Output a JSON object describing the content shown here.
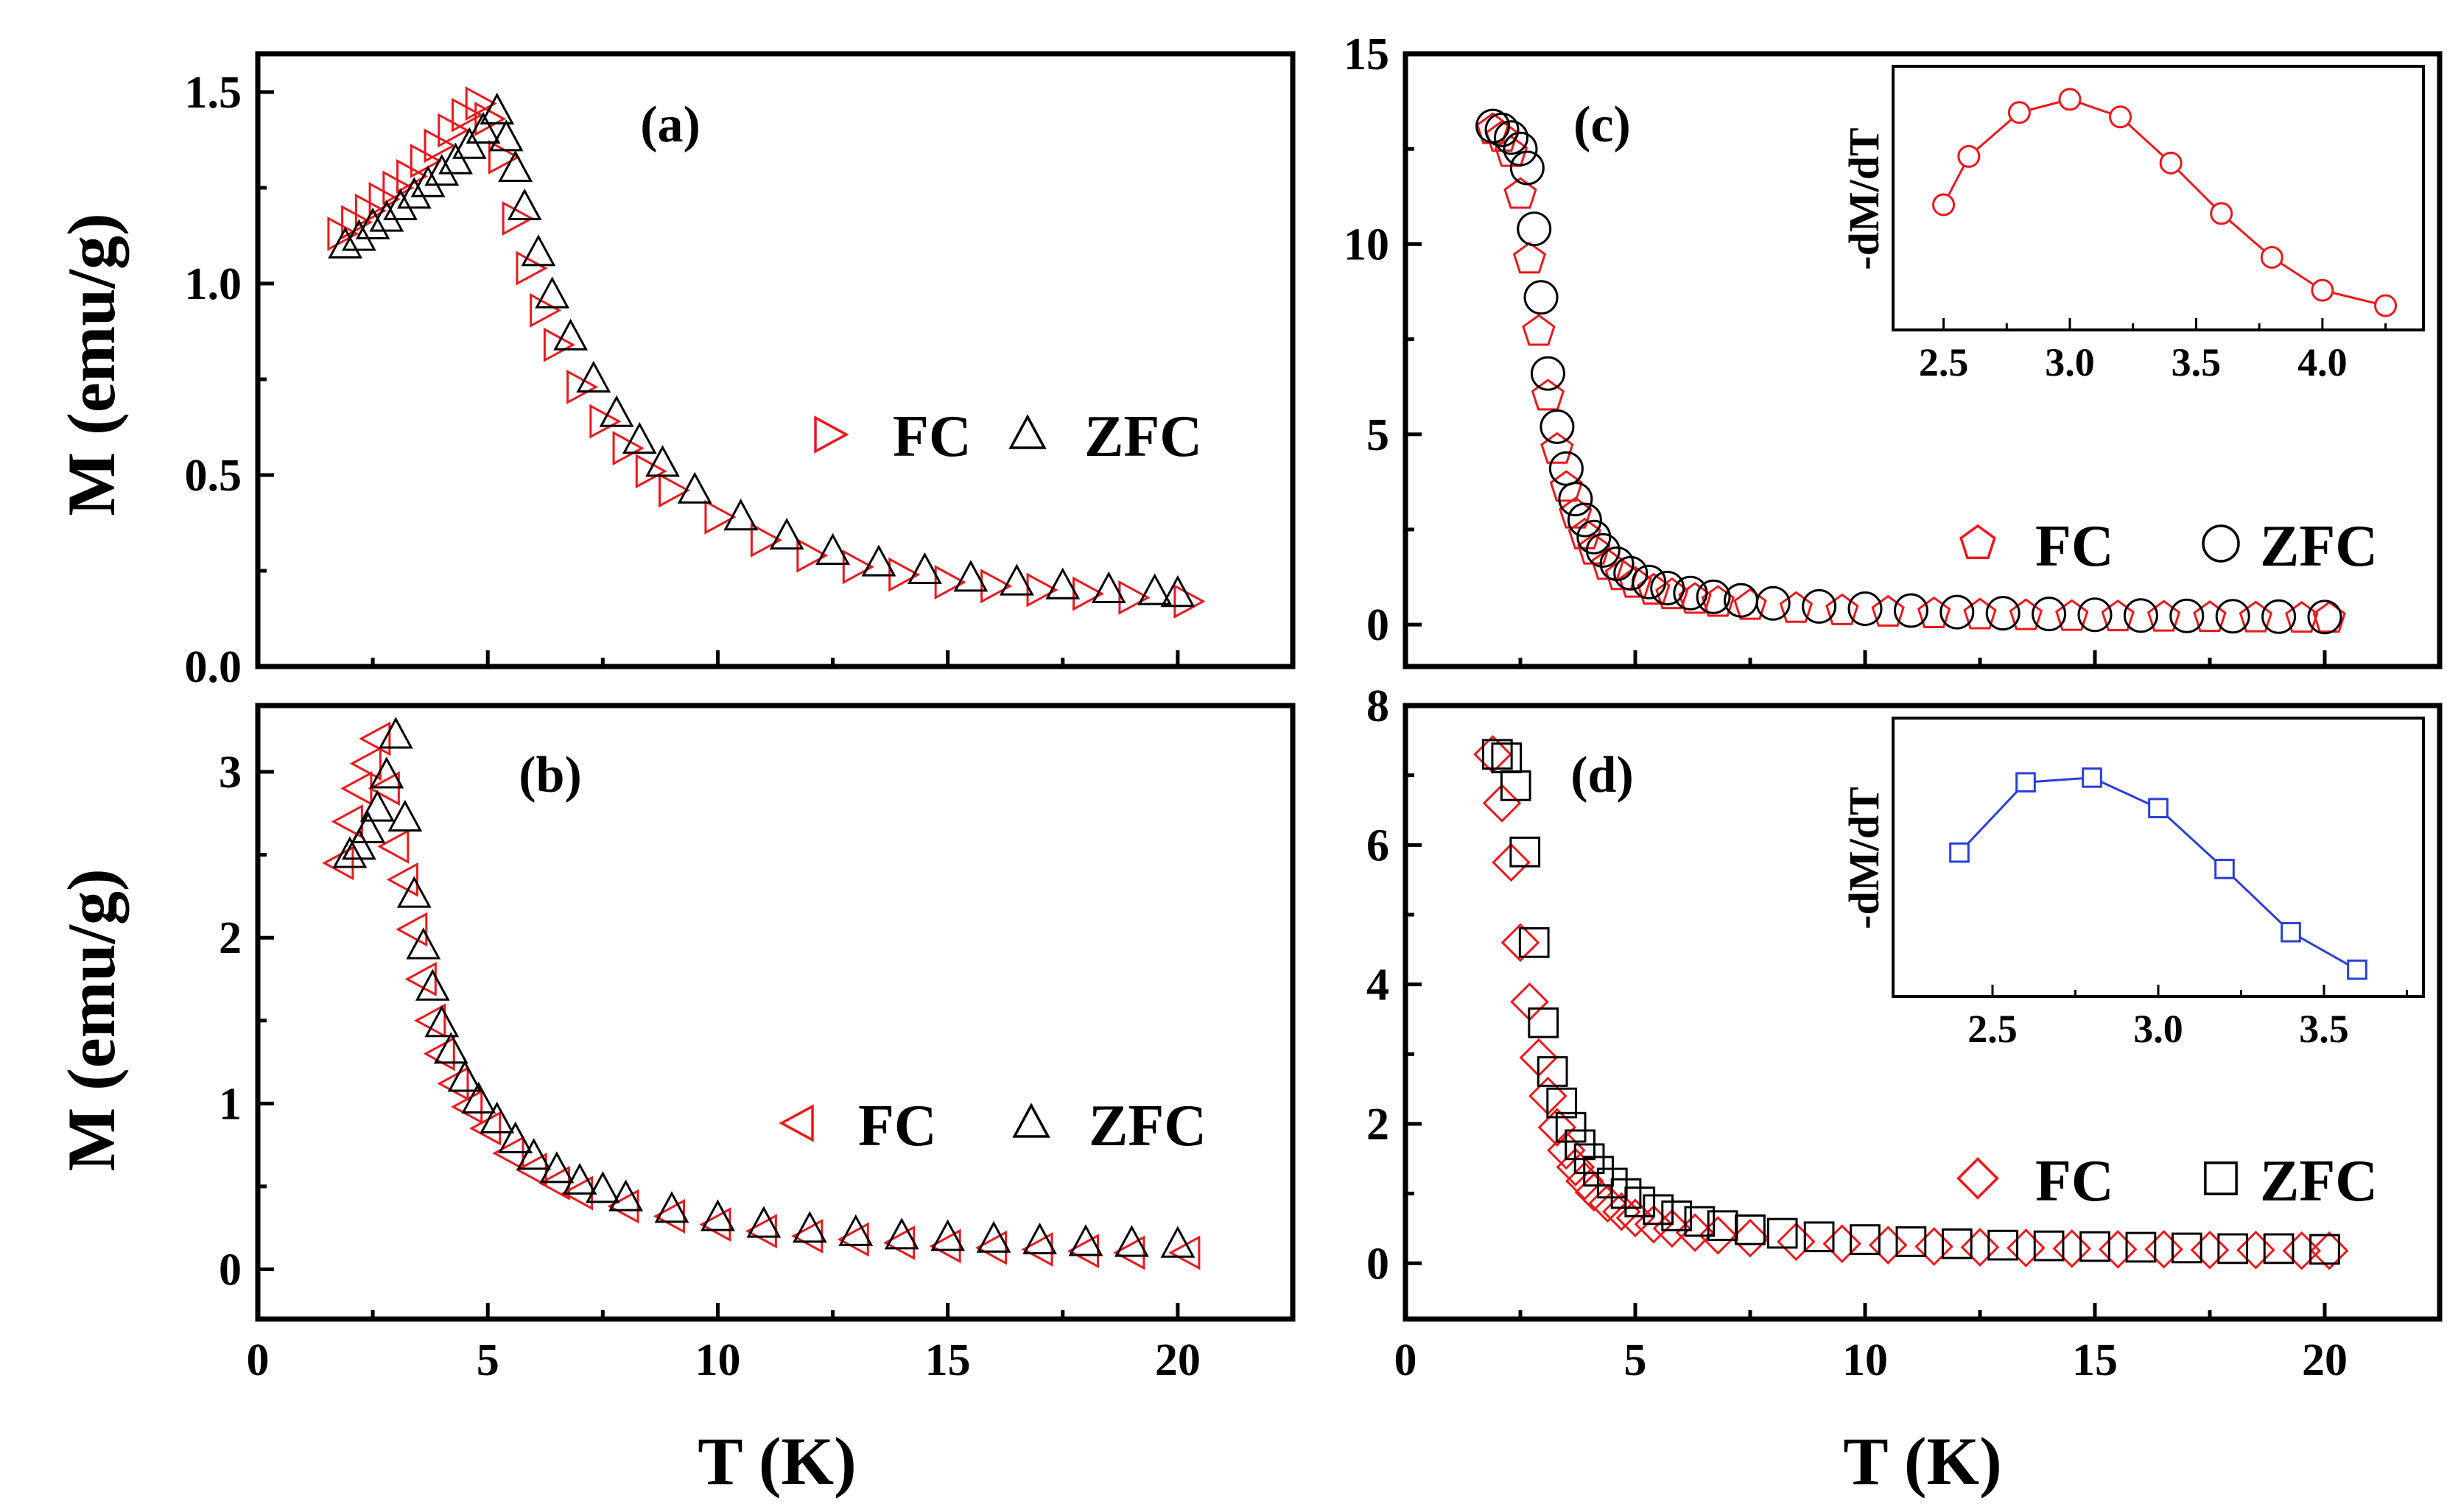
{
  "chart_data": [
    {
      "id": "a",
      "type": "scatter",
      "panel_label": "(a)",
      "xlabel": "",
      "ylabel": "M (emu/g)",
      "xlim": [
        0,
        22.5
      ],
      "ylim": [
        0,
        1.6
      ],
      "xticks": [
        0,
        5,
        10,
        15,
        20
      ],
      "xtick_labels": [
        "",
        "",
        "",
        "",
        ""
      ],
      "yticks": [
        0.0,
        0.5,
        1.0,
        1.5
      ],
      "ytick_labels": [
        "0.0",
        "0.5",
        "1.0",
        "1.5"
      ],
      "legend": {
        "position": "middle-right",
        "entries": [
          "FC",
          "ZFC"
        ]
      },
      "series": [
        {
          "name": "FC",
          "marker": "triangle-right",
          "color": "#e8191c",
          "x": [
            1.8,
            2.1,
            2.4,
            2.7,
            3.0,
            3.3,
            3.6,
            3.9,
            4.2,
            4.5,
            4.8,
            5.0,
            5.3,
            5.6,
            5.9,
            6.2,
            6.5,
            7.0,
            7.5,
            8.0,
            8.5,
            9.0,
            10.0,
            11.0,
            12.0,
            13.0,
            14.0,
            15.0,
            16.0,
            17.0,
            18.0,
            19.0,
            20.2
          ],
          "y": [
            1.13,
            1.16,
            1.19,
            1.22,
            1.25,
            1.28,
            1.32,
            1.36,
            1.4,
            1.44,
            1.47,
            1.43,
            1.33,
            1.17,
            1.04,
            0.93,
            0.84,
            0.73,
            0.64,
            0.57,
            0.51,
            0.46,
            0.39,
            0.33,
            0.29,
            0.26,
            0.24,
            0.22,
            0.21,
            0.2,
            0.19,
            0.18,
            0.17
          ]
        },
        {
          "name": "ZFC",
          "marker": "triangle-up",
          "color": "#000000",
          "x": [
            1.9,
            2.2,
            2.5,
            2.8,
            3.1,
            3.4,
            3.7,
            4.0,
            4.3,
            4.6,
            4.9,
            5.2,
            5.4,
            5.6,
            5.8,
            6.1,
            6.4,
            6.8,
            7.3,
            7.8,
            8.3,
            8.8,
            9.5,
            10.5,
            11.5,
            12.5,
            13.5,
            14.5,
            15.5,
            16.5,
            17.5,
            18.5,
            19.5,
            20.0
          ],
          "y": [
            1.1,
            1.12,
            1.15,
            1.17,
            1.2,
            1.23,
            1.26,
            1.29,
            1.32,
            1.36,
            1.4,
            1.45,
            1.38,
            1.3,
            1.2,
            1.08,
            0.97,
            0.86,
            0.75,
            0.66,
            0.59,
            0.53,
            0.46,
            0.39,
            0.34,
            0.3,
            0.27,
            0.25,
            0.23,
            0.22,
            0.21,
            0.2,
            0.195,
            0.19
          ]
        }
      ]
    },
    {
      "id": "b",
      "type": "scatter",
      "panel_label": "(b)",
      "xlabel": "T (K)",
      "ylabel": "M (emu/g)",
      "xlim": [
        0,
        22.5
      ],
      "ylim": [
        -0.3,
        3.4
      ],
      "xticks": [
        0,
        5,
        10,
        15,
        20
      ],
      "xtick_labels": [
        "0",
        "5",
        "10",
        "15",
        "20"
      ],
      "yticks": [
        0,
        1,
        2,
        3
      ],
      "ytick_labels": [
        "0",
        "1",
        "2",
        "3"
      ],
      "legend": {
        "position": "lower-right",
        "entries": [
          "FC",
          "ZFC"
        ]
      },
      "series": [
        {
          "name": "FC",
          "marker": "triangle-left",
          "color": "#e8191c",
          "x": [
            1.8,
            2.0,
            2.2,
            2.4,
            2.6,
            2.8,
            3.0,
            3.2,
            3.4,
            3.6,
            3.8,
            4.0,
            4.3,
            4.6,
            5.0,
            5.5,
            6.0,
            6.5,
            7.0,
            8.0,
            9.0,
            10.0,
            11.0,
            12.0,
            13.0,
            14.0,
            15.0,
            16.0,
            17.0,
            18.0,
            19.0,
            20.2
          ],
          "y": [
            2.45,
            2.7,
            2.9,
            3.05,
            3.2,
            2.9,
            2.55,
            2.35,
            2.05,
            1.75,
            1.5,
            1.3,
            1.12,
            0.98,
            0.85,
            0.7,
            0.6,
            0.52,
            0.46,
            0.38,
            0.32,
            0.27,
            0.23,
            0.2,
            0.18,
            0.16,
            0.14,
            0.13,
            0.12,
            0.11,
            0.1,
            0.1
          ]
        },
        {
          "name": "ZFC",
          "marker": "triangle-up",
          "color": "#000000",
          "x": [
            2.0,
            2.2,
            2.4,
            2.6,
            2.8,
            3.0,
            3.2,
            3.4,
            3.6,
            3.8,
            4.0,
            4.2,
            4.5,
            4.8,
            5.2,
            5.6,
            6.0,
            6.5,
            7.0,
            7.5,
            8.0,
            9.0,
            10.0,
            11.0,
            12.0,
            13.0,
            14.0,
            15.0,
            16.0,
            17.0,
            18.0,
            19.0,
            20.0
          ],
          "y": [
            2.5,
            2.55,
            2.65,
            2.78,
            2.98,
            3.22,
            2.72,
            2.26,
            1.95,
            1.7,
            1.48,
            1.32,
            1.15,
            1.02,
            0.9,
            0.78,
            0.68,
            0.6,
            0.53,
            0.48,
            0.43,
            0.36,
            0.31,
            0.27,
            0.24,
            0.22,
            0.2,
            0.19,
            0.18,
            0.17,
            0.16,
            0.155,
            0.15
          ]
        }
      ]
    },
    {
      "id": "c",
      "type": "scatter",
      "panel_label": "(c)",
      "xlabel": "",
      "ylabel": "",
      "xlim": [
        0,
        22.5
      ],
      "ylim": [
        -1.1,
        15
      ],
      "xticks": [
        0,
        5,
        10,
        15,
        20
      ],
      "xtick_labels": [
        "",
        "",
        "",
        "",
        ""
      ],
      "yticks": [
        0,
        5,
        10,
        15
      ],
      "ytick_labels": [
        "0",
        "5",
        "10",
        "15"
      ],
      "legend": {
        "position": "lower-right",
        "entries": [
          "FC",
          "ZFC"
        ]
      },
      "series": [
        {
          "name": "FC",
          "marker": "pentagon",
          "color": "#e8191c",
          "x": [
            1.9,
            2.1,
            2.3,
            2.5,
            2.7,
            2.9,
            3.1,
            3.3,
            3.5,
            3.7,
            3.9,
            4.1,
            4.4,
            4.7,
            5.0,
            5.4,
            5.8,
            6.3,
            6.8,
            7.5,
            8.5,
            9.5,
            10.5,
            11.5,
            12.5,
            13.5,
            14.5,
            15.5,
            16.5,
            17.5,
            18.5,
            19.5,
            20.1
          ],
          "y": [
            13.0,
            12.8,
            12.4,
            11.3,
            9.6,
            7.7,
            6.0,
            4.6,
            3.6,
            2.9,
            2.35,
            1.95,
            1.55,
            1.28,
            1.08,
            0.9,
            0.78,
            0.66,
            0.58,
            0.5,
            0.42,
            0.36,
            0.32,
            0.28,
            0.25,
            0.23,
            0.21,
            0.2,
            0.19,
            0.18,
            0.17,
            0.16,
            0.16
          ]
        },
        {
          "name": "ZFC",
          "marker": "circle",
          "color": "#000000",
          "x": [
            1.9,
            2.1,
            2.3,
            2.5,
            2.65,
            2.8,
            2.95,
            3.1,
            3.3,
            3.5,
            3.7,
            3.9,
            4.1,
            4.3,
            4.6,
            4.9,
            5.3,
            5.7,
            6.2,
            6.7,
            7.3,
            8.0,
            9.0,
            10.0,
            11.0,
            12.0,
            13.0,
            14.0,
            15.0,
            16.0,
            17.0,
            18.0,
            19.0,
            20.0
          ],
          "y": [
            13.1,
            13.0,
            12.8,
            12.5,
            12.0,
            10.4,
            8.6,
            6.6,
            5.2,
            4.1,
            3.3,
            2.75,
            2.3,
            1.95,
            1.6,
            1.35,
            1.12,
            0.96,
            0.83,
            0.73,
            0.64,
            0.56,
            0.48,
            0.42,
            0.37,
            0.33,
            0.3,
            0.28,
            0.26,
            0.24,
            0.23,
            0.22,
            0.21,
            0.2
          ]
        }
      ],
      "inset": {
        "ylabel": "-dM/dT",
        "xlim": [
          2.3,
          4.4
        ],
        "ylim": [
          0.0,
          1.0
        ],
        "xticks": [
          2.5,
          3.0,
          3.5,
          4.0
        ],
        "xtick_labels": [
          "2.5",
          "3.0",
          "3.5",
          "4.0"
        ],
        "marker": "circle",
        "color": "#e8191c",
        "x": [
          2.5,
          2.6,
          2.8,
          3.0,
          3.2,
          3.4,
          3.6,
          3.8,
          4.0,
          4.25
        ],
        "y": [
          0.47,
          0.69,
          0.89,
          0.95,
          0.87,
          0.66,
          0.43,
          0.23,
          0.08,
          0.01
        ]
      }
    },
    {
      "id": "d",
      "type": "scatter",
      "panel_label": "(d)",
      "xlabel": "T (K)",
      "ylabel": "",
      "xlim": [
        0,
        22.5
      ],
      "ylim": [
        -0.8,
        8
      ],
      "xticks": [
        0,
        5,
        10,
        15,
        20
      ],
      "xtick_labels": [
        "0",
        "5",
        "10",
        "15",
        "20"
      ],
      "yticks": [
        0,
        2,
        4,
        6,
        8
      ],
      "ytick_labels": [
        "0",
        "2",
        "4",
        "6",
        "8"
      ],
      "legend": {
        "position": "lower-right",
        "entries": [
          "FC",
          "ZFC"
        ]
      },
      "series": [
        {
          "name": "FC",
          "marker": "diamond",
          "color": "#e8191c",
          "x": [
            1.9,
            2.1,
            2.3,
            2.5,
            2.7,
            2.9,
            3.1,
            3.3,
            3.5,
            3.7,
            3.9,
            4.1,
            4.4,
            4.7,
            5.0,
            5.4,
            5.8,
            6.3,
            6.8,
            7.5,
            8.5,
            9.5,
            10.5,
            11.5,
            12.5,
            13.5,
            14.5,
            15.5,
            16.5,
            17.5,
            18.5,
            19.5,
            20.1
          ],
          "y": [
            7.3,
            6.6,
            5.75,
            4.6,
            3.75,
            2.95,
            2.4,
            1.95,
            1.62,
            1.38,
            1.18,
            1.02,
            0.86,
            0.74,
            0.65,
            0.56,
            0.5,
            0.44,
            0.4,
            0.36,
            0.31,
            0.28,
            0.26,
            0.24,
            0.23,
            0.22,
            0.21,
            0.2,
            0.2,
            0.19,
            0.19,
            0.18,
            0.18
          ]
        },
        {
          "name": "ZFC",
          "marker": "square",
          "color": "#000000",
          "x": [
            2.0,
            2.2,
            2.4,
            2.6,
            2.8,
            3.0,
            3.2,
            3.4,
            3.6,
            3.8,
            4.0,
            4.2,
            4.5,
            4.8,
            5.1,
            5.5,
            5.9,
            6.4,
            6.9,
            7.5,
            8.2,
            9.0,
            10.0,
            11.0,
            12.0,
            13.0,
            14.0,
            15.0,
            16.0,
            17.0,
            18.0,
            19.0,
            20.0
          ],
          "y": [
            7.3,
            7.25,
            6.85,
            5.9,
            4.6,
            3.45,
            2.75,
            2.3,
            1.95,
            1.7,
            1.5,
            1.32,
            1.15,
            1.0,
            0.88,
            0.77,
            0.68,
            0.6,
            0.54,
            0.48,
            0.43,
            0.38,
            0.34,
            0.31,
            0.28,
            0.26,
            0.25,
            0.24,
            0.23,
            0.22,
            0.21,
            0.21,
            0.2
          ]
        }
      ],
      "inset": {
        "ylabel": "-dM/dT",
        "xlim": [
          2.2,
          3.8
        ],
        "ylim": [
          0.0,
          1.0
        ],
        "xticks": [
          2.5,
          3.0,
          3.5
        ],
        "xtick_labels": [
          "2.5",
          "3.0",
          "3.5"
        ],
        "marker": "square",
        "color": "#2a3fd8",
        "x": [
          2.4,
          2.6,
          2.8,
          3.0,
          3.2,
          3.4,
          3.6
        ],
        "y": [
          0.52,
          0.82,
          0.84,
          0.71,
          0.45,
          0.18,
          0.02
        ]
      }
    }
  ]
}
